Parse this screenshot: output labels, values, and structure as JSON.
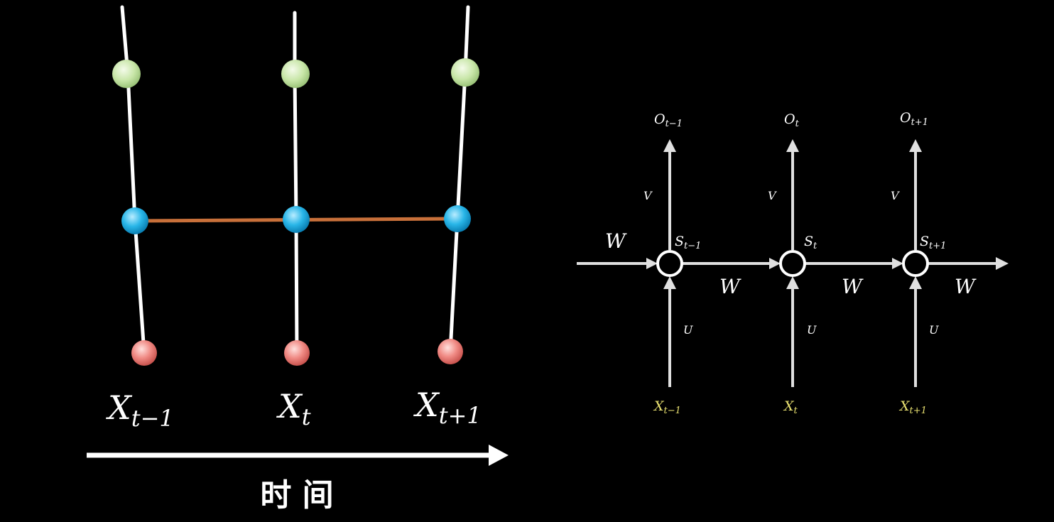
{
  "left_panel": {
    "inputs": [
      {
        "base": "X",
        "sub": "t−1"
      },
      {
        "base": "X",
        "sub": "t"
      },
      {
        "base": "X",
        "sub": "t+1"
      }
    ],
    "time_label": "时 间",
    "colors": {
      "output_node": "#c8e6a8",
      "hidden_node": "#29b6e8",
      "input_node": "#f08a84",
      "recurrent_link": "#c8703a",
      "lines": "#ffffff"
    }
  },
  "right_panel": {
    "outputs": [
      {
        "base": "O",
        "sub": "t−1"
      },
      {
        "base": "O",
        "sub": "t"
      },
      {
        "base": "O",
        "sub": "t+1"
      }
    ],
    "states": [
      {
        "base": "S",
        "sub": "t−1"
      },
      {
        "base": "S",
        "sub": "t"
      },
      {
        "base": "S",
        "sub": "t+1"
      }
    ],
    "inputs": [
      {
        "base": "X",
        "sub": "t−1"
      },
      {
        "base": "X",
        "sub": "t"
      },
      {
        "base": "X",
        "sub": "t+1"
      }
    ],
    "weight_v": "V",
    "weight_u": "U",
    "weight_w": "W",
    "colors": {
      "arrows": "#e0e0e0",
      "input_labels": "#e8e070"
    }
  }
}
